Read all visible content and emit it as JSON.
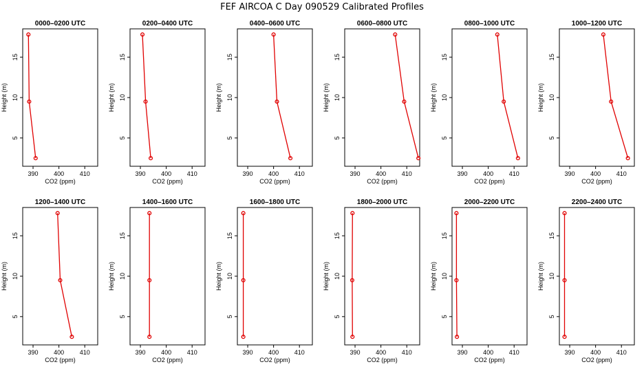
{
  "title": "FEF AIRCOA C  Day 090529  Calibrated Profiles",
  "chart_data": {
    "type": "line",
    "xlabel": "CO2 (ppm)",
    "ylabel": "Height (m)",
    "xlim": [
      386,
      415
    ],
    "ylim": [
      1.5,
      18.5
    ],
    "xticks": [
      "390",
      "400",
      "410"
    ],
    "yticks": [
      "5",
      "10",
      "15"
    ],
    "heights": [
      2.5,
      9.5,
      17.8
    ],
    "panels": [
      {
        "title": "0000–0200 UTC",
        "values": [
          391.0,
          388.5,
          388.2
        ]
      },
      {
        "title": "0200–0400 UTC",
        "values": [
          394.0,
          392.0,
          390.8
        ]
      },
      {
        "title": "0400–0600 UTC",
        "values": [
          406.5,
          401.3,
          400.0
        ]
      },
      {
        "title": "0600–0800 UTC",
        "values": [
          414.5,
          409.0,
          405.5
        ]
      },
      {
        "title": "0800–1000 UTC",
        "values": [
          411.5,
          406.0,
          403.5
        ]
      },
      {
        "title": "1000–1200 UTC",
        "values": [
          412.5,
          406.0,
          403.0
        ]
      },
      {
        "title": "1200–1400 UTC",
        "values": [
          405.0,
          400.5,
          399.5
        ]
      },
      {
        "title": "1400–1600 UTC",
        "values": [
          393.5,
          393.5,
          393.5
        ]
      },
      {
        "title": "1600–1800 UTC",
        "values": [
          388.3,
          388.3,
          388.3
        ]
      },
      {
        "title": "1800–2000 UTC",
        "values": [
          389.0,
          388.9,
          389.0
        ]
      },
      {
        "title": "2000–2200 UTC",
        "values": [
          387.9,
          387.7,
          387.7
        ]
      },
      {
        "title": "2200–2400 UTC",
        "values": [
          388.0,
          388.0,
          388.0
        ]
      }
    ]
  }
}
